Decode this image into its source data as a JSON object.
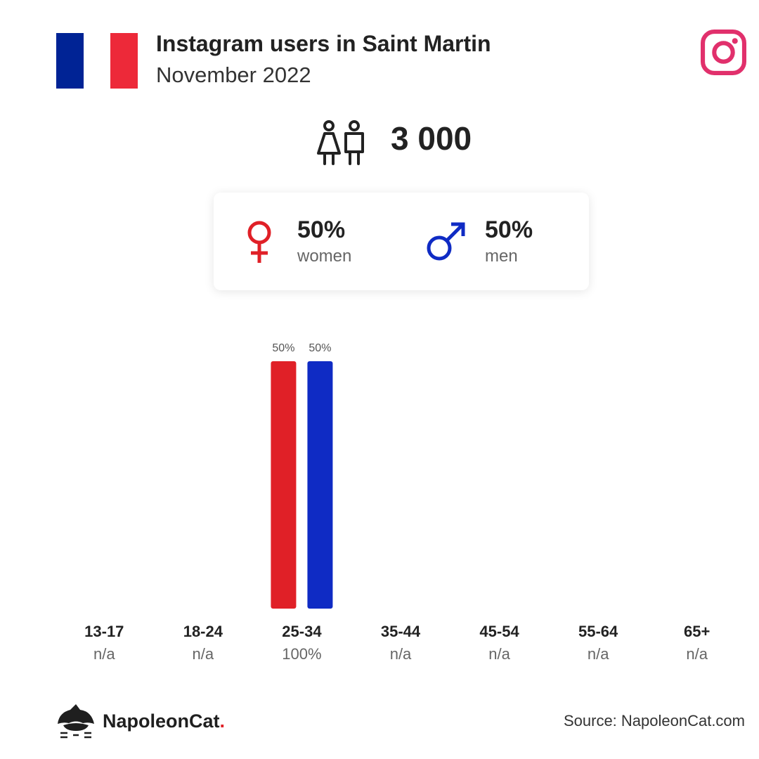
{
  "header": {
    "title": "Instagram users in Saint Martin",
    "subtitle": "November 2022"
  },
  "flag": {
    "colors": [
      "#002395",
      "#ffffff",
      "#ed2939"
    ]
  },
  "icons": {
    "platform": "instagram-icon",
    "users": "people-icon",
    "female": "female-symbol-icon",
    "male": "male-symbol-icon",
    "brand": "napoleoncat-logo-icon"
  },
  "total_users": "3 000",
  "gender": {
    "women": {
      "pct": "50%",
      "label": "women",
      "color": "#e02027"
    },
    "men": {
      "pct": "50%",
      "label": "men",
      "color": "#0f2bc4"
    }
  },
  "chart_data": {
    "type": "bar",
    "categories": [
      "13-17",
      "18-24",
      "25-34",
      "35-44",
      "45-54",
      "55-64",
      "65+"
    ],
    "category_totals": [
      "n/a",
      "n/a",
      "100%",
      "n/a",
      "n/a",
      "n/a",
      "n/a"
    ],
    "series": [
      {
        "name": "women",
        "color": "#e02027",
        "values": [
          null,
          null,
          50,
          null,
          null,
          null,
          null
        ],
        "labels": [
          "",
          "",
          "50%",
          "",
          "",
          "",
          ""
        ]
      },
      {
        "name": "men",
        "color": "#0f2bc4",
        "values": [
          null,
          null,
          50,
          null,
          null,
          null,
          null
        ],
        "labels": [
          "",
          "",
          "50%",
          "",
          "",
          "",
          ""
        ]
      }
    ],
    "ylim": [
      0,
      50
    ],
    "title": "",
    "xlabel": "",
    "ylabel": "",
    "grid": false
  },
  "footer": {
    "brand_name": "NapoleonCat",
    "brand_dot": ".",
    "source": "Source: NapoleonCat.com"
  }
}
